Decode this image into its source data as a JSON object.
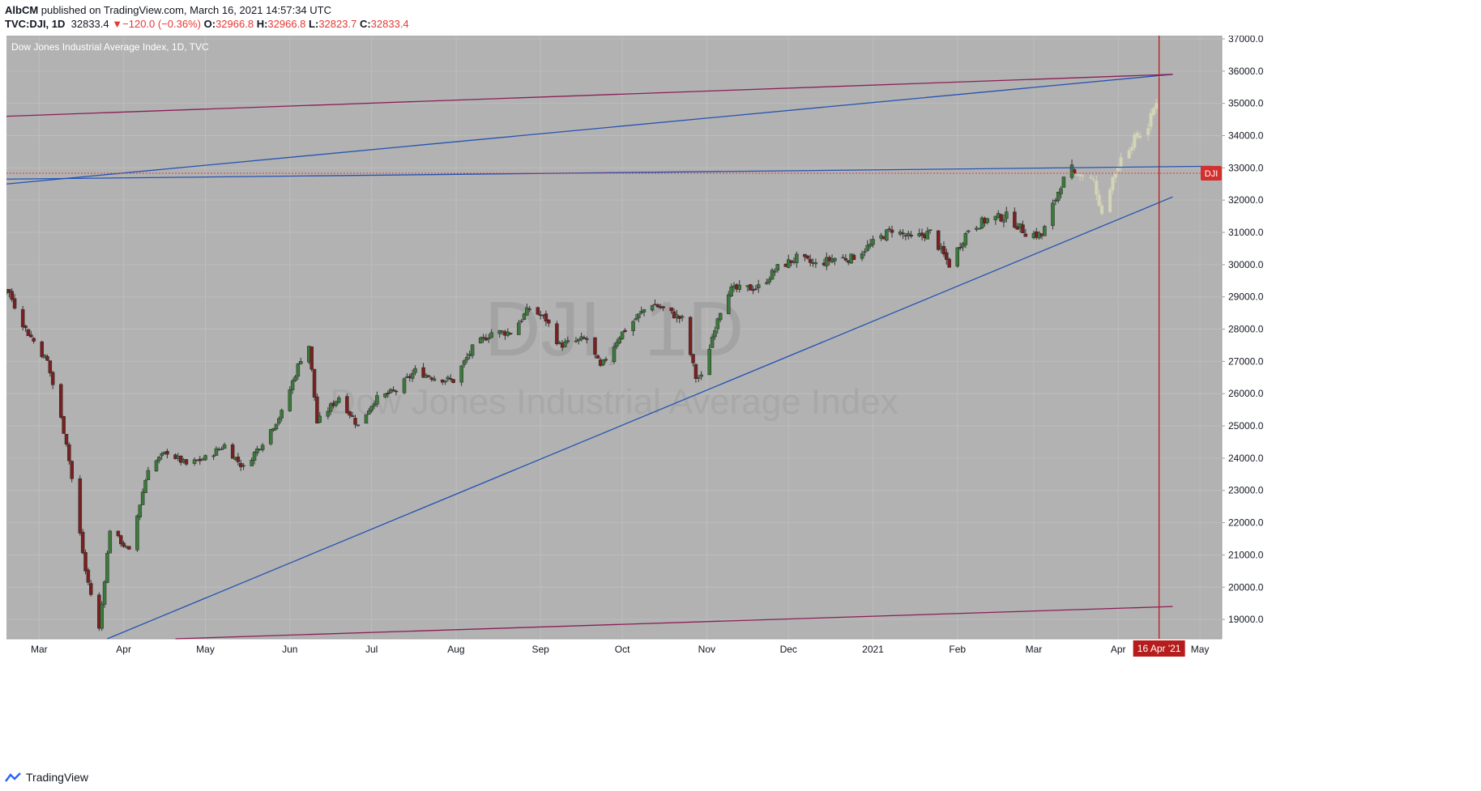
{
  "header": {
    "author": "AlbCM",
    "published_text": "published on TradingView.com, March 16, 2021 14:57:34 UTC",
    "symbol": "TVC:DJI, 1D",
    "last_price": "32833.4",
    "change": "−120.0 (−0.36%)",
    "open_label": "O:",
    "open_value": "32966.8",
    "high_label": "H:",
    "high_value": "32966.8",
    "low_label": "L:",
    "low_value": "32823.7",
    "close_label": "C:",
    "close_value": "32833.4"
  },
  "footer": {
    "brand": "TradingView"
  },
  "colors": {
    "pane_bg": "#b2b2b2",
    "grid": "#bdbdbd",
    "up_candle": "#3a7a3a",
    "down_candle": "#7a2020",
    "projection": "#d4d4b8",
    "trendline_blue": "#2453b2",
    "trendline_purple": "#8b1e57",
    "price_line": "#e53935",
    "time_marker": "#b71c1c"
  },
  "chart_data": {
    "type": "candlestick",
    "title": "Dow Jones Industrial Average Index, 1D, TVC",
    "watermark_symbol": "DJI, 1D",
    "watermark_name": "Dow Jones Industrial Average Index",
    "y_range": [
      18400,
      37100
    ],
    "y_ticks": [
      19000,
      20000,
      21000,
      22000,
      23000,
      24000,
      25000,
      26000,
      27000,
      28000,
      29000,
      30000,
      31000,
      32000,
      33000,
      34000,
      35000,
      36000,
      37000
    ],
    "y_tick_labels": [
      "19000.0",
      "20000.0",
      "21000.0",
      "22000.0",
      "23000.0",
      "24000.0",
      "25000.0",
      "26000.0",
      "27000.0",
      "28000.0",
      "29000.0",
      "30000.0",
      "31000.0",
      "32000.0",
      "33000.0",
      "34000.0",
      "35000.0",
      "36000.0",
      "37000.0"
    ],
    "x_range": [
      "2020-02-18",
      "2021-05-09"
    ],
    "x_ticks": [
      {
        "date": "2020-03-01",
        "label": "Mar"
      },
      {
        "date": "2020-04-01",
        "label": "Apr"
      },
      {
        "date": "2020-05-01",
        "label": "May"
      },
      {
        "date": "2020-06-01",
        "label": "Jun"
      },
      {
        "date": "2020-07-01",
        "label": "Jul"
      },
      {
        "date": "2020-08-01",
        "label": "Aug"
      },
      {
        "date": "2020-09-01",
        "label": "Sep"
      },
      {
        "date": "2020-10-01",
        "label": "Oct"
      },
      {
        "date": "2020-11-01",
        "label": "Nov"
      },
      {
        "date": "2020-12-01",
        "label": "Dec"
      },
      {
        "date": "2021-01-01",
        "label": "2021"
      },
      {
        "date": "2021-02-01",
        "label": "Feb"
      },
      {
        "date": "2021-03-01",
        "label": "Mar"
      },
      {
        "date": "2021-04-01",
        "label": "Apr"
      },
      {
        "date": "2021-05-01",
        "label": "May"
      }
    ],
    "last_value": 32833.4,
    "last_value_badge": "DJI",
    "time_marker": {
      "date": "2021-04-16",
      "label": "16 Apr '21"
    },
    "series": [
      {
        "name": "DJI",
        "style": "candles",
        "points": [
          [
            "2020-02-18",
            29300
          ],
          [
            "2020-02-25",
            28000
          ],
          [
            "2020-03-04",
            27000
          ],
          [
            "2020-03-11",
            24500
          ],
          [
            "2020-03-18",
            20500
          ],
          [
            "2020-03-23",
            18700
          ],
          [
            "2020-03-27",
            21800
          ],
          [
            "2020-04-03",
            21100
          ],
          [
            "2020-04-10",
            23700
          ],
          [
            "2020-04-17",
            24200
          ],
          [
            "2020-04-24",
            23800
          ],
          [
            "2020-05-01",
            24000
          ],
          [
            "2020-05-08",
            24400
          ],
          [
            "2020-05-15",
            23700
          ],
          [
            "2020-05-22",
            24500
          ],
          [
            "2020-05-29",
            25400
          ],
          [
            "2020-06-05",
            27100
          ],
          [
            "2020-06-08",
            27500
          ],
          [
            "2020-06-11",
            25100
          ],
          [
            "2020-06-19",
            25900
          ],
          [
            "2020-06-26",
            25000
          ],
          [
            "2020-07-02",
            25800
          ],
          [
            "2020-07-10",
            26100
          ],
          [
            "2020-07-17",
            26700
          ],
          [
            "2020-07-24",
            26500
          ],
          [
            "2020-07-31",
            26400
          ],
          [
            "2020-08-07",
            27400
          ],
          [
            "2020-08-14",
            27900
          ],
          [
            "2020-08-21",
            27900
          ],
          [
            "2020-08-28",
            28650
          ],
          [
            "2020-09-03",
            28300
          ],
          [
            "2020-09-08",
            27500
          ],
          [
            "2020-09-18",
            27700
          ],
          [
            "2020-09-23",
            26800
          ],
          [
            "2020-09-30",
            27800
          ],
          [
            "2020-10-09",
            28600
          ],
          [
            "2020-10-12",
            28800
          ],
          [
            "2020-10-23",
            28300
          ],
          [
            "2020-10-28",
            26500
          ],
          [
            "2020-10-30",
            26500
          ],
          [
            "2020-11-05",
            28400
          ],
          [
            "2020-11-09",
            29200
          ],
          [
            "2020-11-20",
            29300
          ],
          [
            "2020-11-27",
            29900
          ],
          [
            "2020-12-04",
            30200
          ],
          [
            "2020-12-11",
            30000
          ],
          [
            "2020-12-18",
            30200
          ],
          [
            "2020-12-24",
            30200
          ],
          [
            "2020-12-31",
            30600
          ],
          [
            "2021-01-08",
            31100
          ],
          [
            "2021-01-15",
            30800
          ],
          [
            "2021-01-22",
            31000
          ],
          [
            "2021-01-29",
            30000
          ],
          [
            "2021-02-05",
            31100
          ],
          [
            "2021-02-12",
            31400
          ],
          [
            "2021-02-19",
            31500
          ],
          [
            "2021-02-26",
            31000
          ],
          [
            "2021-03-04",
            30900
          ],
          [
            "2021-03-11",
            32500
          ],
          [
            "2021-03-15",
            32950
          ],
          [
            "2021-03-16",
            32833.4
          ]
        ]
      },
      {
        "name": "Projection",
        "style": "faded candles",
        "points": [
          [
            "2021-03-17",
            32800
          ],
          [
            "2021-03-23",
            32600
          ],
          [
            "2021-03-26",
            31600
          ],
          [
            "2021-03-30",
            32700
          ],
          [
            "2021-04-02",
            33300
          ],
          [
            "2021-04-07",
            33900
          ],
          [
            "2021-04-12",
            34300
          ],
          [
            "2021-04-15",
            35100
          ],
          [
            "2021-04-16",
            35800
          ]
        ]
      }
    ],
    "trendlines": [
      {
        "style": "blue",
        "points": [
          [
            "2020-02-18",
            32500
          ],
          [
            "2021-04-21",
            35900
          ]
        ]
      },
      {
        "style": "blue",
        "points": [
          [
            "2020-02-18",
            32650
          ],
          [
            "2021-05-05",
            33050
          ]
        ]
      },
      {
        "style": "blue",
        "points": [
          [
            "2020-03-26",
            18400
          ],
          [
            "2021-04-21",
            32100
          ]
        ]
      },
      {
        "style": "purple",
        "points": [
          [
            "2020-02-18",
            34600
          ],
          [
            "2021-04-21",
            35900
          ]
        ]
      },
      {
        "style": "purple",
        "points": [
          [
            "2020-04-20",
            18400
          ],
          [
            "2021-04-21",
            19400
          ]
        ]
      }
    ]
  }
}
